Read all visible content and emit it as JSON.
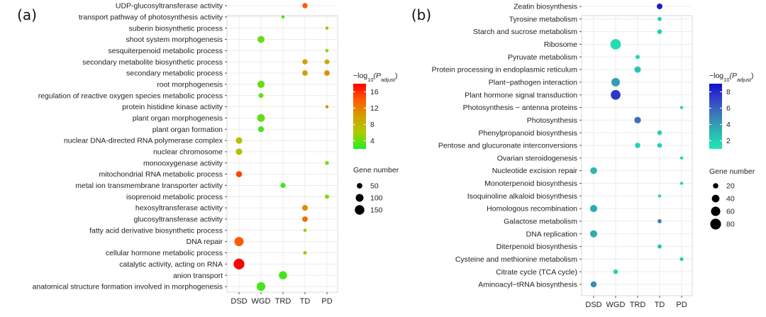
{
  "chart_data": [
    {
      "type": "scatter",
      "panel_label": "(a)",
      "x_categories": [
        "DSD",
        "WGD",
        "TRD",
        "TD",
        "PD"
      ],
      "y_categories": [
        "UDP-glucosyltransferase activity",
        "transport pathway of photosynthesis activity",
        "suberin biosynthetic process",
        "shoot system morphogenesis",
        "sesquiterpenoid metabolic process",
        "secondary metabolite biosynthetic process",
        "secondary metabolic process",
        "root morphogenesis",
        "regulation of reactive oxygen species metabolic process",
        "protein histidine kinase activity",
        "plant organ morphogenesis",
        "plant organ formation",
        "nuclear DNA-directed RNA polymerase complex",
        "nuclear chromosome",
        "monooxygenase activity",
        "mitochondrial RNA metabolic process",
        "metal ion transmembrane transporter activity",
        "isoprenoid metabolic process",
        "hexosyltransferase activity",
        "glucosyltransferase activity",
        "fatty acid derivative biosynthetic process",
        "DNA repair",
        "cellular hormone metabolic process",
        "catalytic activity, acting on RNA",
        "anion transport",
        "anatomical structure formation involved in morphogenesis"
      ],
      "points": [
        {
          "term": "UDP-glucosyltransferase activity",
          "group": "TD",
          "gene_number": 45,
          "neg_log10_padj": 14
        },
        {
          "term": "transport pathway of photosynthesis activity",
          "group": "TRD",
          "gene_number": 6,
          "neg_log10_padj": 3
        },
        {
          "term": "suberin biosynthetic process",
          "group": "PD",
          "gene_number": 12,
          "neg_log10_padj": 5
        },
        {
          "term": "shoot system morphogenesis",
          "group": "WGD",
          "gene_number": 80,
          "neg_log10_padj": 4
        },
        {
          "term": "sesquiterpenoid metabolic process",
          "group": "PD",
          "gene_number": 12,
          "neg_log10_padj": 5
        },
        {
          "term": "secondary metabolite biosynthetic process",
          "group": "TD",
          "gene_number": 45,
          "neg_log10_padj": 10
        },
        {
          "term": "secondary metabolite biosynthetic process",
          "group": "PD",
          "gene_number": 40,
          "neg_log10_padj": 9
        },
        {
          "term": "secondary metabolic process",
          "group": "TD",
          "gene_number": 50,
          "neg_log10_padj": 10
        },
        {
          "term": "secondary metabolic process",
          "group": "PD",
          "gene_number": 50,
          "neg_log10_padj": 11
        },
        {
          "term": "root morphogenesis",
          "group": "WGD",
          "gene_number": 85,
          "neg_log10_padj": 4
        },
        {
          "term": "regulation of reactive oxygen species metabolic process",
          "group": "WGD",
          "gene_number": 40,
          "neg_log10_padj": 4
        },
        {
          "term": "protein histidine kinase activity",
          "group": "PD",
          "gene_number": 15,
          "neg_log10_padj": 11
        },
        {
          "term": "plant organ morphogenesis",
          "group": "WGD",
          "gene_number": 100,
          "neg_log10_padj": 4
        },
        {
          "term": "plant organ formation",
          "group": "WGD",
          "gene_number": 55,
          "neg_log10_padj": 3
        },
        {
          "term": "nuclear DNA-directed RNA polymerase complex",
          "group": "DSD",
          "gene_number": 70,
          "neg_log10_padj": 7
        },
        {
          "term": "nuclear chromosome",
          "group": "DSD",
          "gene_number": 70,
          "neg_log10_padj": 7
        },
        {
          "term": "monooxygenase activity",
          "group": "PD",
          "gene_number": 25,
          "neg_log10_padj": 5
        },
        {
          "term": "mitochondrial RNA metabolic process",
          "group": "DSD",
          "gene_number": 60,
          "neg_log10_padj": 15
        },
        {
          "term": "metal ion transmembrane transporter activity",
          "group": "TRD",
          "gene_number": 45,
          "neg_log10_padj": 3
        },
        {
          "term": "isoprenoid metabolic process",
          "group": "PD",
          "gene_number": 30,
          "neg_log10_padj": 5
        },
        {
          "term": "hexosyltransferase activity",
          "group": "TD",
          "gene_number": 55,
          "neg_log10_padj": 11
        },
        {
          "term": "glucosyltransferase activity",
          "group": "TD",
          "gene_number": 50,
          "neg_log10_padj": 13
        },
        {
          "term": "fatty acid derivative biosynthetic process",
          "group": "TD",
          "gene_number": 12,
          "neg_log10_padj": 5
        },
        {
          "term": "DNA repair",
          "group": "DSD",
          "gene_number": 140,
          "neg_log10_padj": 14
        },
        {
          "term": "cellular hormone metabolic process",
          "group": "TD",
          "gene_number": 20,
          "neg_log10_padj": 7
        },
        {
          "term": "catalytic activity, acting on RNA",
          "group": "DSD",
          "gene_number": 190,
          "neg_log10_padj": 18
        },
        {
          "term": "anion transport",
          "group": "TRD",
          "gene_number": 110,
          "neg_log10_padj": 3
        },
        {
          "term": "anatomical structure formation involved in morphogenesis",
          "group": "WGD",
          "gene_number": 125,
          "neg_log10_padj": 3
        }
      ],
      "color_legend": {
        "title_prefix": "−log",
        "title_sub": "10",
        "title_p": "(P",
        "title_psub": "adjust",
        "title_close": ")",
        "ticks": [
          4,
          8,
          12,
          16
        ],
        "range": [
          2,
          18
        ],
        "colors": [
          "#22ee22",
          "#aacc00",
          "#d2a000",
          "#ff5a00",
          "#ff0000"
        ]
      },
      "size_legend": {
        "title": "Gene number",
        "values": [
          50,
          100,
          150
        ]
      }
    },
    {
      "type": "scatter",
      "panel_label": "(b)",
      "x_categories": [
        "DSD",
        "WGD",
        "TRD",
        "TD",
        "PD"
      ],
      "y_categories": [
        "Zeatin biosynthesis",
        "Tyrosine metabolism",
        "Starch and sucrose metabolism",
        "Ribosome",
        "Pyruvate metabolism",
        "Protein processing in endoplasmic reticulum",
        "Plant−pathogen interaction",
        "Plant hormone signal transduction",
        "Photosynthesis − antenna proteins",
        "Photosynthesis",
        "Phenylpropanoid biosynthesis",
        "Pentose and glucuronate interconversions",
        "Ovarian steroidogenesis",
        "Nucleotide excision repair",
        "Monoterpenoid biosynthesis",
        "Isoquinoline alkaloid biosynthesis",
        "Homologous recombination",
        "Galactose metabolism",
        "DNA replication",
        "Diterpenoid biosynthesis",
        "Cysteine and methionine metabolism",
        "Citrate cycle (TCA cycle)",
        "Aminoacyl−tRNA biosynthesis"
      ],
      "points": [
        {
          "term": "Zeatin biosynthesis",
          "group": "TD",
          "gene_number": 22,
          "neg_log10_padj": 8.5
        },
        {
          "term": "Tyrosine metabolism",
          "group": "TD",
          "gene_number": 12,
          "neg_log10_padj": 2
        },
        {
          "term": "Starch and sucrose metabolism",
          "group": "TD",
          "gene_number": 15,
          "neg_log10_padj": 2
        },
        {
          "term": "Ribosome",
          "group": "WGD",
          "gene_number": 75,
          "neg_log10_padj": 1.5
        },
        {
          "term": "Pyruvate metabolism",
          "group": "TRD",
          "gene_number": 12,
          "neg_log10_padj": 2
        },
        {
          "term": "Protein processing in endoplasmic reticulum",
          "group": "TRD",
          "gene_number": 28,
          "neg_log10_padj": 2.5
        },
        {
          "term": "Plant−pathogen interaction",
          "group": "WGD",
          "gene_number": 50,
          "neg_log10_padj": 4
        },
        {
          "term": "Plant hormone signal transduction",
          "group": "WGD",
          "gene_number": 65,
          "neg_log10_padj": 7.5
        },
        {
          "term": "Photosynthesis − antenna proteins",
          "group": "PD",
          "gene_number": 3,
          "neg_log10_padj": 2
        },
        {
          "term": "Photosynthesis",
          "group": "TRD",
          "gene_number": 30,
          "neg_log10_padj": 5.5
        },
        {
          "term": "Phenylpropanoid biosynthesis",
          "group": "TD",
          "gene_number": 15,
          "neg_log10_padj": 2
        },
        {
          "term": "Pentose and glucuronate interconversions",
          "group": "TRD",
          "gene_number": 20,
          "neg_log10_padj": 2
        },
        {
          "term": "Pentose and glucuronate interconversions",
          "group": "TD",
          "gene_number": 15,
          "neg_log10_padj": 2
        },
        {
          "term": "Ovarian steroidogenesis",
          "group": "PD",
          "gene_number": 4,
          "neg_log10_padj": 2
        },
        {
          "term": "Nucleotide excision repair",
          "group": "DSD",
          "gene_number": 32,
          "neg_log10_padj": 3
        },
        {
          "term": "Monoterpenoid biosynthesis",
          "group": "PD",
          "gene_number": 3,
          "neg_log10_padj": 2
        },
        {
          "term": "Isoquinoline alkaloid biosynthesis",
          "group": "TD",
          "gene_number": 5,
          "neg_log10_padj": 2
        },
        {
          "term": "Homologous recombination",
          "group": "DSD",
          "gene_number": 35,
          "neg_log10_padj": 3.5
        },
        {
          "term": "Galactose metabolism",
          "group": "TD",
          "gene_number": 12,
          "neg_log10_padj": 5
        },
        {
          "term": "DNA replication",
          "group": "DSD",
          "gene_number": 35,
          "neg_log10_padj": 3.5
        },
        {
          "term": "Diterpenoid biosynthesis",
          "group": "TD",
          "gene_number": 12,
          "neg_log10_padj": 2.5
        },
        {
          "term": "Cysteine and methionine metabolism",
          "group": "PD",
          "gene_number": 10,
          "neg_log10_padj": 2
        },
        {
          "term": "Citrate cycle (TCA cycle)",
          "group": "WGD",
          "gene_number": 15,
          "neg_log10_padj": 2
        },
        {
          "term": "Aminoacyl−tRNA biosynthesis",
          "group": "DSD",
          "gene_number": 25,
          "neg_log10_padj": 4.5
        }
      ],
      "color_legend": {
        "title_prefix": "−log",
        "title_sub": "10",
        "title_p": "(P",
        "title_psub": "adjust",
        "title_close": ")",
        "ticks": [
          2,
          4,
          6,
          8
        ],
        "range": [
          1,
          9
        ],
        "colors": [
          "#1de9b6",
          "#2bb8b0",
          "#3d7fb8",
          "#3346c8",
          "#0f0fd0"
        ]
      },
      "size_legend": {
        "title": "Gene number",
        "values": [
          20,
          40,
          60,
          80
        ]
      }
    }
  ]
}
